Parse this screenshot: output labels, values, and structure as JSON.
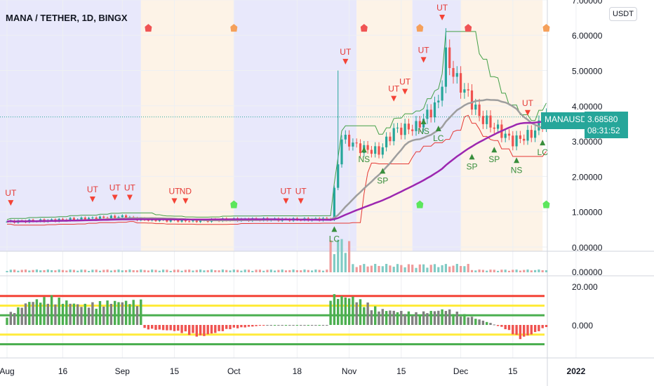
{
  "header": {
    "title": "MANA / TETHER, 1D, BINGX",
    "currency": "USDT"
  },
  "last": {
    "symbol": "MANAUSDT",
    "price": "3.68580",
    "countdown": "08:31:52"
  },
  "colors": {
    "up": "#26a69a",
    "down": "#ef5350",
    "ma1": "#9c27b0",
    "ma2": "#9e9e9e",
    "blueBand": "#e8e8fb",
    "orangeBand": "#fdf3e7"
  },
  "chart_data": {
    "type": "candlestick",
    "title": "MANA / TETHER, 1D, BINGX",
    "x_ticks": [
      {
        "day": 0,
        "label": "Aug"
      },
      {
        "day": 15,
        "label": "16"
      },
      {
        "day": 31,
        "label": "Sep"
      },
      {
        "day": 45,
        "label": "15"
      },
      {
        "day": 61,
        "label": "Oct"
      },
      {
        "day": 78,
        "label": "18"
      },
      {
        "day": 92,
        "label": "Nov"
      },
      {
        "day": 106,
        "label": "15"
      },
      {
        "day": 122,
        "label": "Dec"
      },
      {
        "day": 136,
        "label": "15"
      },
      {
        "day": 153,
        "label": "2022"
      }
    ],
    "price_ticks": [
      "7.00000",
      "6.00000",
      "5.00000",
      "4.00000",
      "3.00000",
      "2.00000",
      "1.00000",
      "0.00000"
    ],
    "volume_ticks": [
      "0.00000"
    ],
    "osc_ticks": [
      "20.000",
      "0.000"
    ],
    "ylim": [
      0,
      7
    ],
    "close_keypoints": [
      [
        0,
        0.72
      ],
      [
        10,
        0.75
      ],
      [
        20,
        0.8
      ],
      [
        31,
        0.86
      ],
      [
        36,
        0.78
      ],
      [
        50,
        0.74
      ],
      [
        60,
        0.78
      ],
      [
        80,
        0.78
      ],
      [
        87,
        0.8
      ],
      [
        89,
        2.4
      ],
      [
        90,
        3.1
      ],
      [
        95,
        2.8
      ],
      [
        100,
        2.7
      ],
      [
        104,
        3.3
      ],
      [
        110,
        3.4
      ],
      [
        116,
        4.1
      ],
      [
        118,
        5.4
      ],
      [
        121,
        4.7
      ],
      [
        124,
        4.3
      ],
      [
        127,
        3.7
      ],
      [
        131,
        3.4
      ],
      [
        136,
        3.0
      ],
      [
        141,
        3.2
      ],
      [
        145,
        3.69
      ]
    ],
    "osc_keypoints": [
      [
        0,
        5
      ],
      [
        6,
        12
      ],
      [
        12,
        14
      ],
      [
        20,
        10
      ],
      [
        28,
        12
      ],
      [
        36,
        12
      ],
      [
        37,
        -2
      ],
      [
        45,
        -3
      ],
      [
        52,
        -6
      ],
      [
        60,
        -2
      ],
      [
        70,
        0
      ],
      [
        86,
        0
      ],
      [
        87,
        15
      ],
      [
        93,
        14
      ],
      [
        100,
        8
      ],
      [
        110,
        6
      ],
      [
        118,
        8
      ],
      [
        125,
        4
      ],
      [
        130,
        1
      ],
      [
        134,
        -2
      ],
      [
        138,
        -7
      ],
      [
        142,
        -4
      ],
      [
        145,
        -1
      ]
    ],
    "osc_levels": [
      15,
      10,
      5,
      -5,
      -10
    ],
    "bands": [
      {
        "from": -2,
        "to": 36,
        "color": "blue"
      },
      {
        "from": 36,
        "to": 61,
        "color": "orange"
      },
      {
        "from": 61,
        "to": 94,
        "color": "blue"
      },
      {
        "from": 94,
        "to": 109,
        "color": "orange"
      },
      {
        "from": 109,
        "to": 122,
        "color": "blue"
      },
      {
        "from": 122,
        "to": 144,
        "color": "orange"
      }
    ],
    "signals": [
      {
        "day": 1,
        "price": 1.45,
        "label": "UT",
        "type": "sell"
      },
      {
        "day": 23,
        "price": 1.55,
        "label": "UT",
        "type": "sell"
      },
      {
        "day": 29,
        "price": 1.6,
        "label": "UT",
        "type": "sell"
      },
      {
        "day": 33,
        "price": 1.6,
        "label": "UT",
        "type": "sell"
      },
      {
        "day": 45,
        "price": 1.5,
        "label": "UT",
        "type": "sell"
      },
      {
        "day": 48,
        "price": 1.5,
        "label": "ND",
        "type": "sell"
      },
      {
        "day": 75,
        "price": 1.5,
        "label": "UT",
        "type": "sell"
      },
      {
        "day": 79,
        "price": 1.5,
        "label": "UT",
        "type": "sell"
      },
      {
        "day": 91,
        "price": 5.45,
        "label": "UT",
        "type": "sell"
      },
      {
        "day": 104,
        "price": 4.4,
        "label": "UT",
        "type": "sell"
      },
      {
        "day": 107,
        "price": 4.6,
        "label": "UT",
        "type": "sell"
      },
      {
        "day": 112,
        "price": 5.5,
        "label": "UT",
        "type": "sell"
      },
      {
        "day": 117,
        "price": 6.7,
        "label": "UT",
        "type": "sell"
      },
      {
        "day": 140,
        "price": 4.0,
        "label": "UT",
        "type": "sell"
      },
      {
        "day": 88,
        "price": 0.35,
        "label": "LC",
        "type": "buy"
      },
      {
        "day": 96,
        "price": 2.6,
        "label": "NS",
        "type": "buy"
      },
      {
        "day": 101,
        "price": 2.0,
        "label": "SP",
        "type": "buy"
      },
      {
        "day": 112,
        "price": 3.4,
        "label": "NS",
        "type": "buy"
      },
      {
        "day": 116,
        "price": 3.2,
        "label": "LC",
        "type": "buy"
      },
      {
        "day": 125,
        "price": 2.4,
        "label": "SP",
        "type": "buy"
      },
      {
        "day": 131,
        "price": 2.6,
        "label": "SP",
        "type": "buy"
      },
      {
        "day": 137,
        "price": 2.3,
        "label": "NS",
        "type": "buy"
      },
      {
        "day": 144,
        "price": 2.8,
        "label": "LC",
        "type": "buy"
      }
    ],
    "markers": [
      {
        "day": 38,
        "price": 6.2,
        "color": "#f05454"
      },
      {
        "day": 61,
        "price": 6.2,
        "color": "#f5a05a"
      },
      {
        "day": 96,
        "price": 6.2,
        "color": "#f05454"
      },
      {
        "day": 111,
        "price": 6.2,
        "color": "#f5a05a"
      },
      {
        "day": 124,
        "price": 6.2,
        "color": "#f05454"
      },
      {
        "day": 145,
        "price": 6.2,
        "color": "#f5a05a"
      },
      {
        "day": 61,
        "price": 1.2,
        "color": "#5ce65c"
      },
      {
        "day": 111,
        "price": 1.2,
        "color": "#5ce65c"
      },
      {
        "day": 145,
        "price": 1.2,
        "color": "#5ce65c"
      }
    ]
  }
}
